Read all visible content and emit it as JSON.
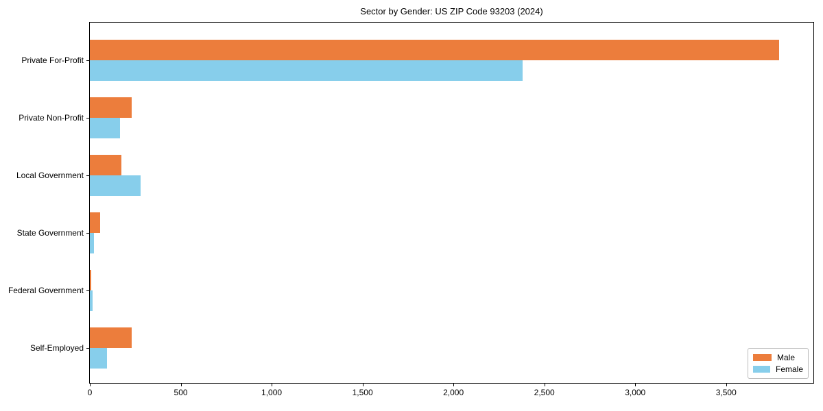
{
  "chart_data": {
    "type": "bar",
    "orientation": "horizontal",
    "title": "Sector by Gender: US ZIP Code 93203 (2024)",
    "categories": [
      "Private For-Profit",
      "Private Non-Profit",
      "Local Government",
      "State Government",
      "Federal Government",
      "Self-Employed"
    ],
    "series": [
      {
        "name": "Male",
        "color": "#ec7d3c",
        "values": [
          3790,
          231,
          172,
          55,
          6,
          230
        ]
      },
      {
        "name": "Female",
        "color": "#87ceeb",
        "values": [
          2380,
          167,
          279,
          24,
          16,
          94
        ]
      }
    ],
    "xlabel": "",
    "ylabel": "",
    "xlim": [
      0,
      3980
    ],
    "xticks": [
      0,
      500,
      1000,
      1500,
      2000,
      2500,
      3000,
      3500
    ],
    "xtick_labels": [
      "0",
      "500",
      "1,000",
      "1,500",
      "2,000",
      "2,500",
      "3,000",
      "3,500"
    ],
    "grid": false,
    "legend_position": "lower right"
  }
}
